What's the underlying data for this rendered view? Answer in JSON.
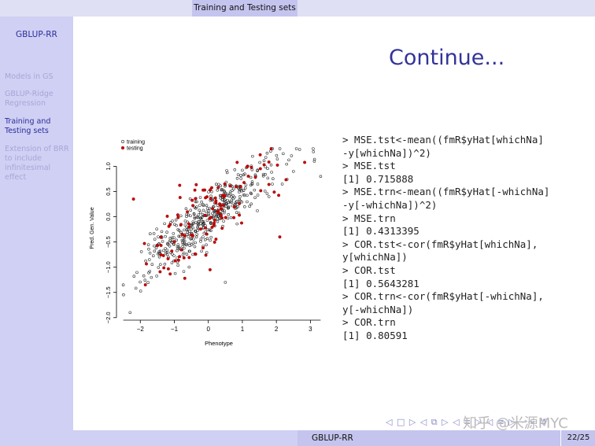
{
  "header": {
    "section_title": "Training and Testing sets"
  },
  "sidebar": {
    "title": "GBLUP-RR",
    "items": [
      {
        "label": "Models in GS"
      },
      {
        "label": "GBLUP-Ridge\nRegression"
      },
      {
        "label": "Training and\nTesting sets"
      },
      {
        "label": "Extension of BRR\nto include\ninfinitesimal\neffect"
      }
    ]
  },
  "slide": {
    "title": "Continue..."
  },
  "code": {
    "text": "> MSE.tst<-mean((fmR$yHat[whichNa]\n-y[whichNa])^2)\n> MSE.tst\n[1] 0.715888\n> MSE.trn<-mean((fmR$yHat[-whichNa]\n-y[-whichNa])^2)\n> MSE.trn\n[1] 0.4313395\n> COR.tst<-cor(fmR$yHat[whichNa],\ny[whichNa])\n> COR.tst\n[1] 0.5643281\n> COR.trn<-cor(fmR$yHat[-whichNa],\ny[-whichNa])\n> COR.trn\n[1] 0.80591"
  },
  "nav": {
    "symbols": "◁ □ ▷ ◁ ⧉ ▷ ◁ ≡ ▷ ◁ ≡ ▷ ∽∾ ↺"
  },
  "watermark": {
    "text": "知乎 @米源MYC"
  },
  "footer": {
    "title": "GBLUP-RR",
    "page": "22/25"
  },
  "chart_data": {
    "type": "scatter",
    "xlabel": "Phenotype",
    "ylabel": "Pred. Gen. Value",
    "xlim": [
      -2.7,
      3.5
    ],
    "ylim": [
      -2.05,
      1.6
    ],
    "xticks": [
      -2,
      -1,
      0,
      1,
      2,
      3
    ],
    "yticks": [
      -2.0,
      -1.5,
      -1.0,
      -0.5,
      0.0,
      0.5,
      1.0
    ],
    "ytick_labels": [
      "-2.0",
      "-1.5",
      "-1.0",
      "-0.5",
      "0.0",
      "0.5",
      "1.0"
    ],
    "legend": {
      "position": "top-left",
      "entries": [
        "training",
        "testing"
      ]
    },
    "colors": {
      "training": "#222222",
      "testing": "#cc0000"
    },
    "grid": false,
    "series": [
      {
        "name": "training",
        "marker": "open-circle",
        "n": 440,
        "x_mean": 0.0,
        "x_sd": 1.0,
        "slope": 0.48,
        "noise_sd": 0.26,
        "seed": 7,
        "outliers": [
          [
            -2.3,
            -1.9
          ],
          [
            2.2,
            1.25
          ],
          [
            3.3,
            0.8
          ],
          [
            2.5,
            0.9
          ],
          [
            1.3,
            1.2
          ],
          [
            0.5,
            -1.3
          ]
        ]
      },
      {
        "name": "testing",
        "marker": "filled-circle",
        "n": 110,
        "x_mean": 0.1,
        "x_sd": 1.0,
        "slope": 0.45,
        "noise_sd": 0.38,
        "seed": 19,
        "outliers": [
          [
            -2.2,
            0.35
          ],
          [
            0.05,
            -1.05
          ],
          [
            2.1,
            -0.4
          ],
          [
            -1.85,
            -1.35
          ]
        ]
      }
    ]
  }
}
